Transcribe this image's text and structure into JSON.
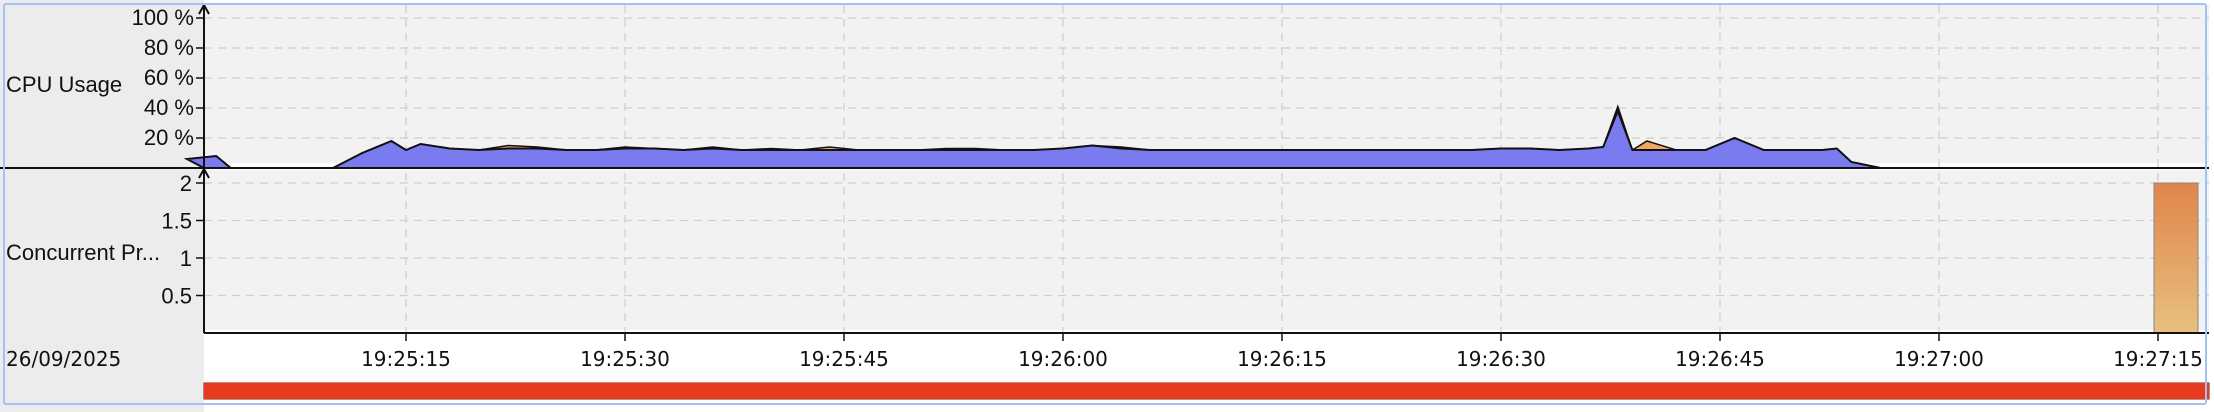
{
  "chart_data": [
    {
      "type": "area",
      "ylabel": "CPU Usage",
      "ylim": [
        0,
        100
      ],
      "y_ticks": [
        "20 %",
        "40 %",
        "60 %",
        "80 %",
        "100 %"
      ],
      "grid": true,
      "colors": {
        "primary": "#7b7bf0",
        "secondary": "#f0a860",
        "line": "#111111"
      },
      "x": [
        "19:25:04",
        "19:25:06",
        "19:25:08",
        "19:25:10",
        "19:25:12",
        "19:25:14",
        "19:25:15",
        "19:25:16",
        "19:25:18",
        "19:25:20",
        "19:25:22",
        "19:25:24",
        "19:25:26",
        "19:25:28",
        "19:25:30",
        "19:25:32",
        "19:25:34",
        "19:25:36",
        "19:25:38",
        "19:25:40",
        "19:25:42",
        "19:25:44",
        "19:25:46",
        "19:25:48",
        "19:25:50",
        "19:25:52",
        "19:25:54",
        "19:25:56",
        "19:25:58",
        "19:26:00",
        "19:26:02",
        "19:26:04",
        "19:26:06",
        "19:26:08",
        "19:26:10",
        "19:26:12",
        "19:26:14",
        "19:26:16",
        "19:26:18",
        "19:26:20",
        "19:26:22",
        "19:26:24",
        "19:26:26",
        "19:26:28",
        "19:26:30",
        "19:26:32",
        "19:26:34",
        "19:26:36",
        "19:26:37",
        "19:26:38",
        "19:26:39",
        "19:26:40",
        "19:26:42",
        "19:26:44",
        "19:26:46",
        "19:26:48",
        "19:26:50",
        "19:26:52",
        "19:26:53",
        "19:26:54",
        "19:26:56"
      ],
      "series": [
        {
          "values": [
            0,
            0,
            0,
            0,
            10,
            18,
            12,
            16,
            13,
            12,
            13,
            13,
            12,
            12,
            13,
            13,
            12,
            13,
            12,
            12,
            12,
            12,
            12,
            12,
            12,
            12,
            12,
            12,
            12,
            13,
            15,
            13,
            12,
            12,
            12,
            12,
            12,
            12,
            12,
            12,
            12,
            12,
            12,
            12,
            13,
            13,
            12,
            13,
            14,
            38,
            12,
            12,
            12,
            12,
            20,
            12,
            12,
            12,
            13,
            4,
            0
          ]
        },
        {
          "values": [
            0,
            0,
            0,
            0,
            0,
            0,
            0,
            0,
            0,
            0,
            2,
            1,
            0,
            0,
            1,
            0,
            0,
            1,
            0,
            1,
            0,
            2,
            0,
            0,
            0,
            1,
            1,
            0,
            0,
            0,
            0,
            1,
            0,
            0,
            0,
            0,
            0,
            0,
            0,
            0,
            0,
            0,
            0,
            0,
            0,
            0,
            0,
            0,
            0,
            3,
            0,
            6,
            0,
            0,
            0,
            0,
            0,
            0,
            0,
            0,
            0
          ]
        }
      ],
      "start_values": [
        {
          "x": "19:25:00",
          "primary": 6
        },
        {
          "x": "19:25:02",
          "primary": 8
        },
        {
          "x": "19:25:03",
          "primary": 0
        }
      ]
    },
    {
      "type": "bar",
      "ylabel": "Concurrent Pr...",
      "ylim": [
        0,
        2
      ],
      "y_ticks": [
        "0.5",
        "1",
        "1.5",
        "2"
      ],
      "grid": true,
      "colors": {
        "bar_top": "#e0854a",
        "bar_bottom": "#e8c080"
      },
      "x": [
        "19:27:15"
      ],
      "values": [
        2
      ]
    }
  ],
  "x_axis": {
    "date_label": "26/09/2025",
    "ticks": [
      "19:25:15",
      "19:25:30",
      "19:25:45",
      "19:26:00",
      "19:26:15",
      "19:26:30",
      "19:26:45",
      "19:27:00",
      "19:27:15"
    ]
  },
  "progress": {
    "value": 1.0,
    "color": "#e83a1e"
  }
}
